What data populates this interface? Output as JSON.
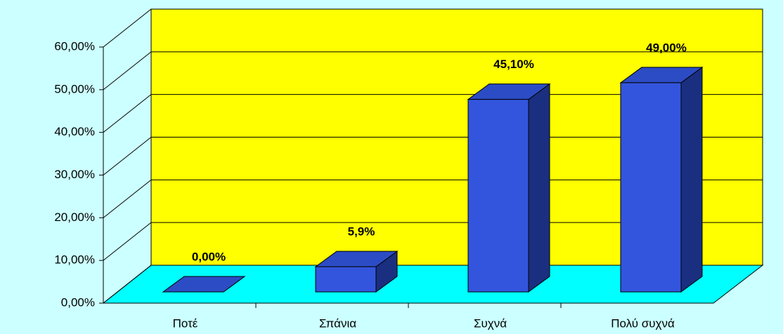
{
  "chart_data": {
    "type": "bar3d",
    "categories": [
      "Ποτέ",
      "Σπάνια",
      "Συχνά",
      "Πολύ συχνά"
    ],
    "values": [
      0,
      5.9,
      45.1,
      49
    ],
    "value_labels": [
      "0,00%",
      "5,9%",
      "45,10%",
      "49,00%"
    ],
    "color": "#3355dd",
    "ylim": [
      0,
      60
    ],
    "yticks": [
      {
        "value": 0,
        "label": "0,00%"
      },
      {
        "value": 10,
        "label": "10,00%"
      },
      {
        "value": 20,
        "label": "20,00%"
      },
      {
        "value": 30,
        "label": "30,00%"
      },
      {
        "value": 40,
        "label": "40,00%"
      },
      {
        "value": 50,
        "label": "50,00%"
      },
      {
        "value": 60,
        "label": "60,00%"
      }
    ],
    "grid": true
  }
}
